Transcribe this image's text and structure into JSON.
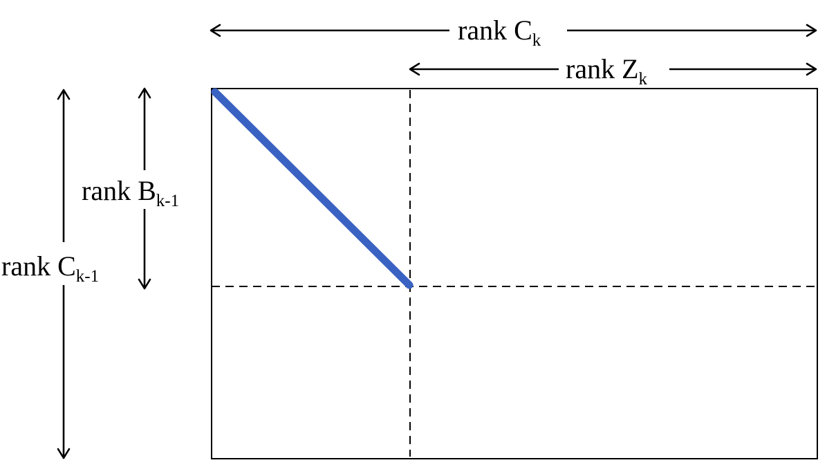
{
  "labels": {
    "rank_ck": {
      "main": "rank C",
      "sub": "k"
    },
    "rank_zk": {
      "main": "rank Z",
      "sub": "k"
    },
    "rank_bk1": {
      "main": "rank B",
      "sub": "k-1"
    },
    "rank_ck1": {
      "main": "rank C",
      "sub": "k-1"
    }
  },
  "colors": {
    "diagonal": "#3a62c2",
    "lines": "#000000"
  }
}
